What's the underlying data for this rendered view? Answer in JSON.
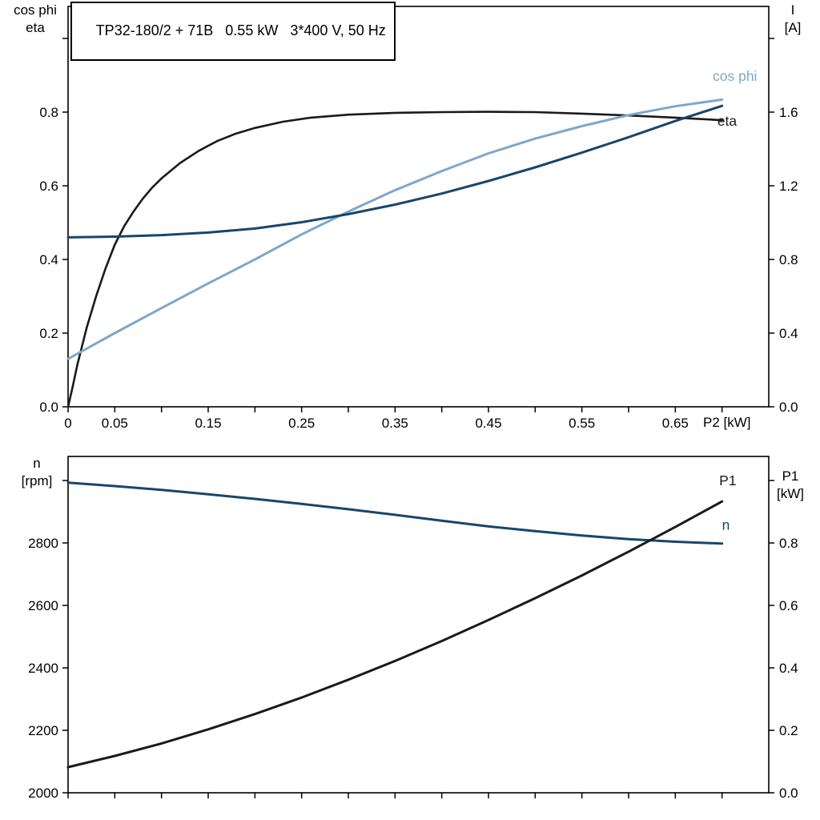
{
  "page": {
    "background": "#ffffff"
  },
  "colors": {
    "frame": "#000000",
    "text": "#000000",
    "eta": "#1a1a1a",
    "p1": "#1a1a1a",
    "current": "#17466b",
    "speed": "#17466b",
    "cosphi": "#7ea7c9"
  },
  "chart_data": [
    {
      "type": "line",
      "title": "TP32-180/2 + 71B   0.55 kW   3*400 V, 50 Hz",
      "xlabel": "P2 [kW]",
      "ylabel_left_lines": [
        "cos phi",
        "eta"
      ],
      "ylabel_right_lines": [
        "I",
        "[A]"
      ],
      "xlim": [
        0,
        0.75
      ],
      "ylim_left": [
        0,
        1.087
      ],
      "ylim_right": [
        0,
        2.174
      ],
      "grid": false,
      "legend": "curve labels at right end of curves",
      "x_ticks": [
        {
          "v": 0.0,
          "label": "0"
        },
        {
          "v": 0.05,
          "label": "0.05"
        },
        {
          "v": 0.1,
          "label": ""
        },
        {
          "v": 0.15,
          "label": "0.15"
        },
        {
          "v": 0.2,
          "label": ""
        },
        {
          "v": 0.25,
          "label": "0.25"
        },
        {
          "v": 0.3,
          "label": ""
        },
        {
          "v": 0.35,
          "label": "0.35"
        },
        {
          "v": 0.4,
          "label": ""
        },
        {
          "v": 0.45,
          "label": "0.45"
        },
        {
          "v": 0.5,
          "label": ""
        },
        {
          "v": 0.55,
          "label": "0.55"
        },
        {
          "v": 0.6,
          "label": ""
        },
        {
          "v": 0.65,
          "label": "0.65"
        },
        {
          "v": 0.7,
          "label": ""
        }
      ],
      "y_ticks_left": [
        {
          "v": 0.0,
          "label": "0.0"
        },
        {
          "v": 0.2,
          "label": "0.2"
        },
        {
          "v": 0.4,
          "label": "0.4"
        },
        {
          "v": 0.6,
          "label": "0.6"
        },
        {
          "v": 0.8,
          "label": "0.8"
        },
        {
          "v": 1.0,
          "label": ""
        }
      ],
      "y_ticks_right": [
        {
          "v": 0.0,
          "label": "0.0"
        },
        {
          "v": 0.4,
          "label": "0.4"
        },
        {
          "v": 0.8,
          "label": "0.8"
        },
        {
          "v": 1.2,
          "label": "1.2"
        },
        {
          "v": 1.6,
          "label": "1.6"
        },
        {
          "v": 2.0,
          "label": ""
        }
      ],
      "series": [
        {
          "name": "eta",
          "axis": "left",
          "color_key": "eta",
          "width": 2.6,
          "points": [
            [
              0,
              0
            ],
            [
              0.005,
              0.055
            ],
            [
              0.01,
              0.115
            ],
            [
              0.02,
              0.215
            ],
            [
              0.03,
              0.3
            ],
            [
              0.04,
              0.375
            ],
            [
              0.05,
              0.44
            ],
            [
              0.06,
              0.49
            ],
            [
              0.07,
              0.53
            ],
            [
              0.08,
              0.565
            ],
            [
              0.09,
              0.595
            ],
            [
              0.1,
              0.62
            ],
            [
              0.12,
              0.662
            ],
            [
              0.14,
              0.695
            ],
            [
              0.16,
              0.722
            ],
            [
              0.18,
              0.742
            ],
            [
              0.2,
              0.757
            ],
            [
              0.23,
              0.774
            ],
            [
              0.26,
              0.785
            ],
            [
              0.3,
              0.793
            ],
            [
              0.35,
              0.798
            ],
            [
              0.4,
              0.8
            ],
            [
              0.45,
              0.801
            ],
            [
              0.5,
              0.8
            ],
            [
              0.55,
              0.796
            ],
            [
              0.6,
              0.791
            ],
            [
              0.65,
              0.785
            ],
            [
              0.7,
              0.778
            ]
          ]
        },
        {
          "name": "cos phi",
          "axis": "left",
          "color_key": "cosphi",
          "width": 3,
          "points": [
            [
              0,
              0.13
            ],
            [
              0.05,
              0.2
            ],
            [
              0.1,
              0.268
            ],
            [
              0.15,
              0.335
            ],
            [
              0.2,
              0.4
            ],
            [
              0.25,
              0.468
            ],
            [
              0.3,
              0.53
            ],
            [
              0.35,
              0.588
            ],
            [
              0.4,
              0.64
            ],
            [
              0.45,
              0.688
            ],
            [
              0.5,
              0.728
            ],
            [
              0.55,
              0.762
            ],
            [
              0.6,
              0.792
            ],
            [
              0.65,
              0.816
            ],
            [
              0.7,
              0.834
            ]
          ]
        },
        {
          "name": "I",
          "axis": "right",
          "color_key": "current",
          "width": 3,
          "points": [
            [
              0,
              0.92
            ],
            [
              0.05,
              0.924
            ],
            [
              0.1,
              0.932
            ],
            [
              0.15,
              0.946
            ],
            [
              0.2,
              0.968
            ],
            [
              0.25,
              1.002
            ],
            [
              0.3,
              1.046
            ],
            [
              0.35,
              1.098
            ],
            [
              0.4,
              1.158
            ],
            [
              0.45,
              1.226
            ],
            [
              0.5,
              1.3
            ],
            [
              0.55,
              1.38
            ],
            [
              0.6,
              1.464
            ],
            [
              0.65,
              1.552
            ],
            [
              0.7,
              1.634
            ]
          ]
        }
      ],
      "annotations": [
        {
          "text": "cos phi",
          "color_key": "cosphi",
          "axis": "left",
          "x": 0.69,
          "y": 0.885,
          "anchor": "start"
        },
        {
          "text": "eta",
          "color_key": "eta",
          "axis": "left",
          "x": 0.695,
          "y": 0.763,
          "anchor": "start"
        }
      ]
    },
    {
      "type": "line",
      "title": "",
      "xlabel": "",
      "ylabel_left_lines": [
        "n",
        "[rpm]"
      ],
      "ylabel_right_lines": [
        "P1",
        "[kW]"
      ],
      "xlim": [
        0,
        0.75
      ],
      "ylim_left": [
        2000,
        3077
      ],
      "ylim_right": [
        0,
        1.077
      ],
      "grid": false,
      "legend": "curve labels at right end of curves",
      "x_ticks": [
        {
          "v": 0.0,
          "label": ""
        },
        {
          "v": 0.05,
          "label": ""
        },
        {
          "v": 0.1,
          "label": ""
        },
        {
          "v": 0.15,
          "label": ""
        },
        {
          "v": 0.2,
          "label": ""
        },
        {
          "v": 0.25,
          "label": ""
        },
        {
          "v": 0.3,
          "label": ""
        },
        {
          "v": 0.35,
          "label": ""
        },
        {
          "v": 0.4,
          "label": ""
        },
        {
          "v": 0.45,
          "label": ""
        },
        {
          "v": 0.5,
          "label": ""
        },
        {
          "v": 0.55,
          "label": ""
        },
        {
          "v": 0.6,
          "label": ""
        },
        {
          "v": 0.65,
          "label": ""
        },
        {
          "v": 0.7,
          "label": ""
        }
      ],
      "y_ticks_left": [
        {
          "v": 2000,
          "label": "2000"
        },
        {
          "v": 2200,
          "label": "2200"
        },
        {
          "v": 2400,
          "label": "2400"
        },
        {
          "v": 2600,
          "label": "2600"
        },
        {
          "v": 2800,
          "label": "2800"
        },
        {
          "v": 3000,
          "label": ""
        }
      ],
      "y_ticks_right": [
        {
          "v": 0.0,
          "label": "0.0"
        },
        {
          "v": 0.2,
          "label": "0.2"
        },
        {
          "v": 0.4,
          "label": "0.4"
        },
        {
          "v": 0.6,
          "label": "0.6"
        },
        {
          "v": 0.8,
          "label": "0.8"
        },
        {
          "v": 1.0,
          "label": ""
        }
      ],
      "series": [
        {
          "name": "n",
          "axis": "left",
          "color_key": "speed",
          "width": 3,
          "points": [
            [
              0,
              2993
            ],
            [
              0.05,
              2982
            ],
            [
              0.1,
              2970
            ],
            [
              0.15,
              2956
            ],
            [
              0.2,
              2941
            ],
            [
              0.25,
              2925
            ],
            [
              0.3,
              2908
            ],
            [
              0.35,
              2890
            ],
            [
              0.4,
              2871
            ],
            [
              0.45,
              2853
            ],
            [
              0.5,
              2838
            ],
            [
              0.55,
              2824
            ],
            [
              0.6,
              2812
            ],
            [
              0.65,
              2804
            ],
            [
              0.7,
              2798
            ]
          ]
        },
        {
          "name": "P1",
          "axis": "right",
          "color_key": "p1",
          "width": 3,
          "points": [
            [
              0,
              0.082
            ],
            [
              0.05,
              0.118
            ],
            [
              0.1,
              0.158
            ],
            [
              0.15,
              0.203
            ],
            [
              0.2,
              0.252
            ],
            [
              0.25,
              0.305
            ],
            [
              0.3,
              0.362
            ],
            [
              0.35,
              0.422
            ],
            [
              0.4,
              0.486
            ],
            [
              0.45,
              0.553
            ],
            [
              0.5,
              0.623
            ],
            [
              0.55,
              0.696
            ],
            [
              0.6,
              0.772
            ],
            [
              0.65,
              0.851
            ],
            [
              0.7,
              0.933
            ]
          ]
        }
      ],
      "annotations": [
        {
          "text": "P1",
          "color_key": "p1",
          "axis": "right",
          "x": 0.697,
          "y": 0.985,
          "anchor": "start"
        },
        {
          "text": "n",
          "color_key": "speed",
          "axis": "left",
          "x": 0.7,
          "y": 2843,
          "anchor": "start"
        }
      ]
    }
  ]
}
